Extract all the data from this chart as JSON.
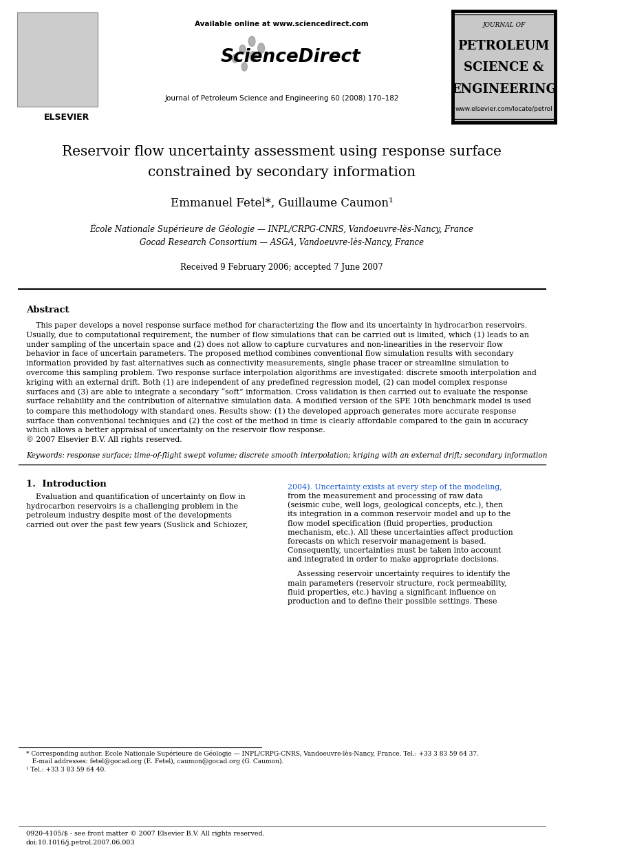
{
  "bg_color": "#ffffff",
  "header": {
    "available_online": "Available online at www.sciencedirect.com",
    "journal_line": "Journal of Petroleum Science and Engineering 60 (2008) 170–182",
    "elsevier_text": "ELSEVIER",
    "journal_of": "JOURNAL OF",
    "petroleum": "PETROLEUM",
    "science": "SCIENCE &",
    "engineering_label": "ENGINEERING",
    "website": "www.elsevier.com/locate/petrol"
  },
  "title_line1": "Reservoir flow uncertainty assessment using response surface",
  "title_line2": "constrained by secondary information",
  "authors": "Emmanuel Fetel*, Guillaume Caumon¹",
  "affil1": "École Nationale Supérieure de Géologie — INPL/CRPG-CNRS, Vandoeuvre-lès-Nancy, France",
  "affil2": "Gocad Research Consortium — ASGA, Vandoeuvre-lès-Nancy, France",
  "received": "Received 9 February 2006; accepted 7 June 2007",
  "abstract_title": "Abstract",
  "abstract_lines": [
    "    This paper develops a novel response surface method for characterizing the flow and its uncertainty in hydrocarbon reservoirs.",
    "Usually, due to computational requirement, the number of flow simulations that can be carried out is limited, which (1) leads to an",
    "under sampling of the uncertain space and (2) does not allow to capture curvatures and non-linearities in the reservoir flow",
    "behavior in face of uncertain parameters. The proposed method combines conventional flow simulation results with secondary",
    "information provided by fast alternatives such as connectivity measurements, single phase tracer or streamline simulation to",
    "overcome this sampling problem. Two response surface interpolation algorithms are investigated: discrete smooth interpolation and",
    "kriging with an external drift. Both (1) are independent of any predefined regression model, (2) can model complex response",
    "surfaces and (3) are able to integrate a secondary “soft” information. Cross validation is then carried out to evaluate the response",
    "surface reliability and the contribution of alternative simulation data. A modified version of the SPE 10th benchmark model is used",
    "to compare this methodology with standard ones. Results show: (1) the developed approach generates more accurate response",
    "surface than conventional techniques and (2) the cost of the method in time is clearly affordable compared to the gain in accuracy",
    "which allows a better appraisal of uncertainty on the reservoir flow response.",
    "© 2007 Elsevier B.V. All rights reserved."
  ],
  "keywords_text": "Keywords: response surface; time-of-flight swept volume; discrete smooth interpolation; kriging with an external drift; secondary information",
  "section1_title": "1.  Introduction",
  "col1_lines": [
    "    Evaluation and quantification of uncertainty on flow in",
    "hydrocarbon reservoirs is a challenging problem in the",
    "petroleum industry despite most of the developments",
    "carried out over the past few years (Suslick and Schiozer,"
  ],
  "col2_lines": [
    "2004). Uncertainty exists at every step of the modeling,",
    "from the measurement and processing of raw data",
    "(seismic cube, well logs, geological concepts, etc.), then",
    "its integration in a common reservoir model and up to the",
    "flow model specification (fluid properties, production",
    "mechanism, etc.). All these uncertainties affect production",
    "forecasts on which reservoir management is based.",
    "Consequently, uncertainties must be taken into account",
    "and integrated in order to make appropriate decisions."
  ],
  "col2_lines2": [
    "    Assessing reservoir uncertainty requires to identify the",
    "main parameters (reservoir structure, rock permeability,",
    "fluid properties, etc.) having a significant influence on",
    "production and to define their possible settings. These"
  ],
  "footnote_star": "* Corresponding author. École Nationale Supérieure de Géologie — INPL/CRPG-CNRS, Vandoeuvre-lès-Nancy, France. Tel.: +33 3 83 59 64 37.",
  "footnote_email": "   E-mail addresses: fetel@gocad.org (E. Fetel), caumon@gocad.org (G. Caumon).",
  "footnote_1": "¹ Tel.: +33 3 83 59 64 40.",
  "footer_left": "0920-4105/$ - see front matter © 2007 Elsevier B.V. All rights reserved.",
  "footer_doi": "doi:10.1016/j.petrol.2007.06.003"
}
